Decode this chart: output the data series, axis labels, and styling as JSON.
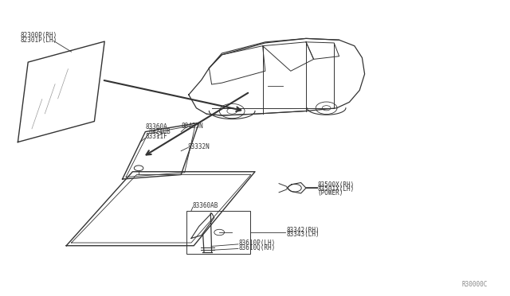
{
  "bg_color": "#ffffff",
  "line_color": "#333333",
  "text_color": "#333333",
  "fig_width": 6.4,
  "fig_height": 3.72,
  "dpi": 100,
  "watermark": "R30000C",
  "fs": 5.5,
  "labels_topleft": [
    "82300P(RH)",
    "82301P(LH)"
  ],
  "label_83360A": "83360A",
  "label_88435N": "88435N",
  "label_83240B": "83240B",
  "label_83311F": "83311F",
  "label_83332N": "83332N",
  "label_83360AB": "83360AB",
  "label_83342": "83342(RH)",
  "label_83343": "83343(LH)",
  "label_83610P": "83610P(LH)",
  "label_83610Q": "83610Q(RH)",
  "label_83500X": "83500X(RH)",
  "label_83501X": "83501X(LH)",
  "label_POWER": "(POWER)"
}
